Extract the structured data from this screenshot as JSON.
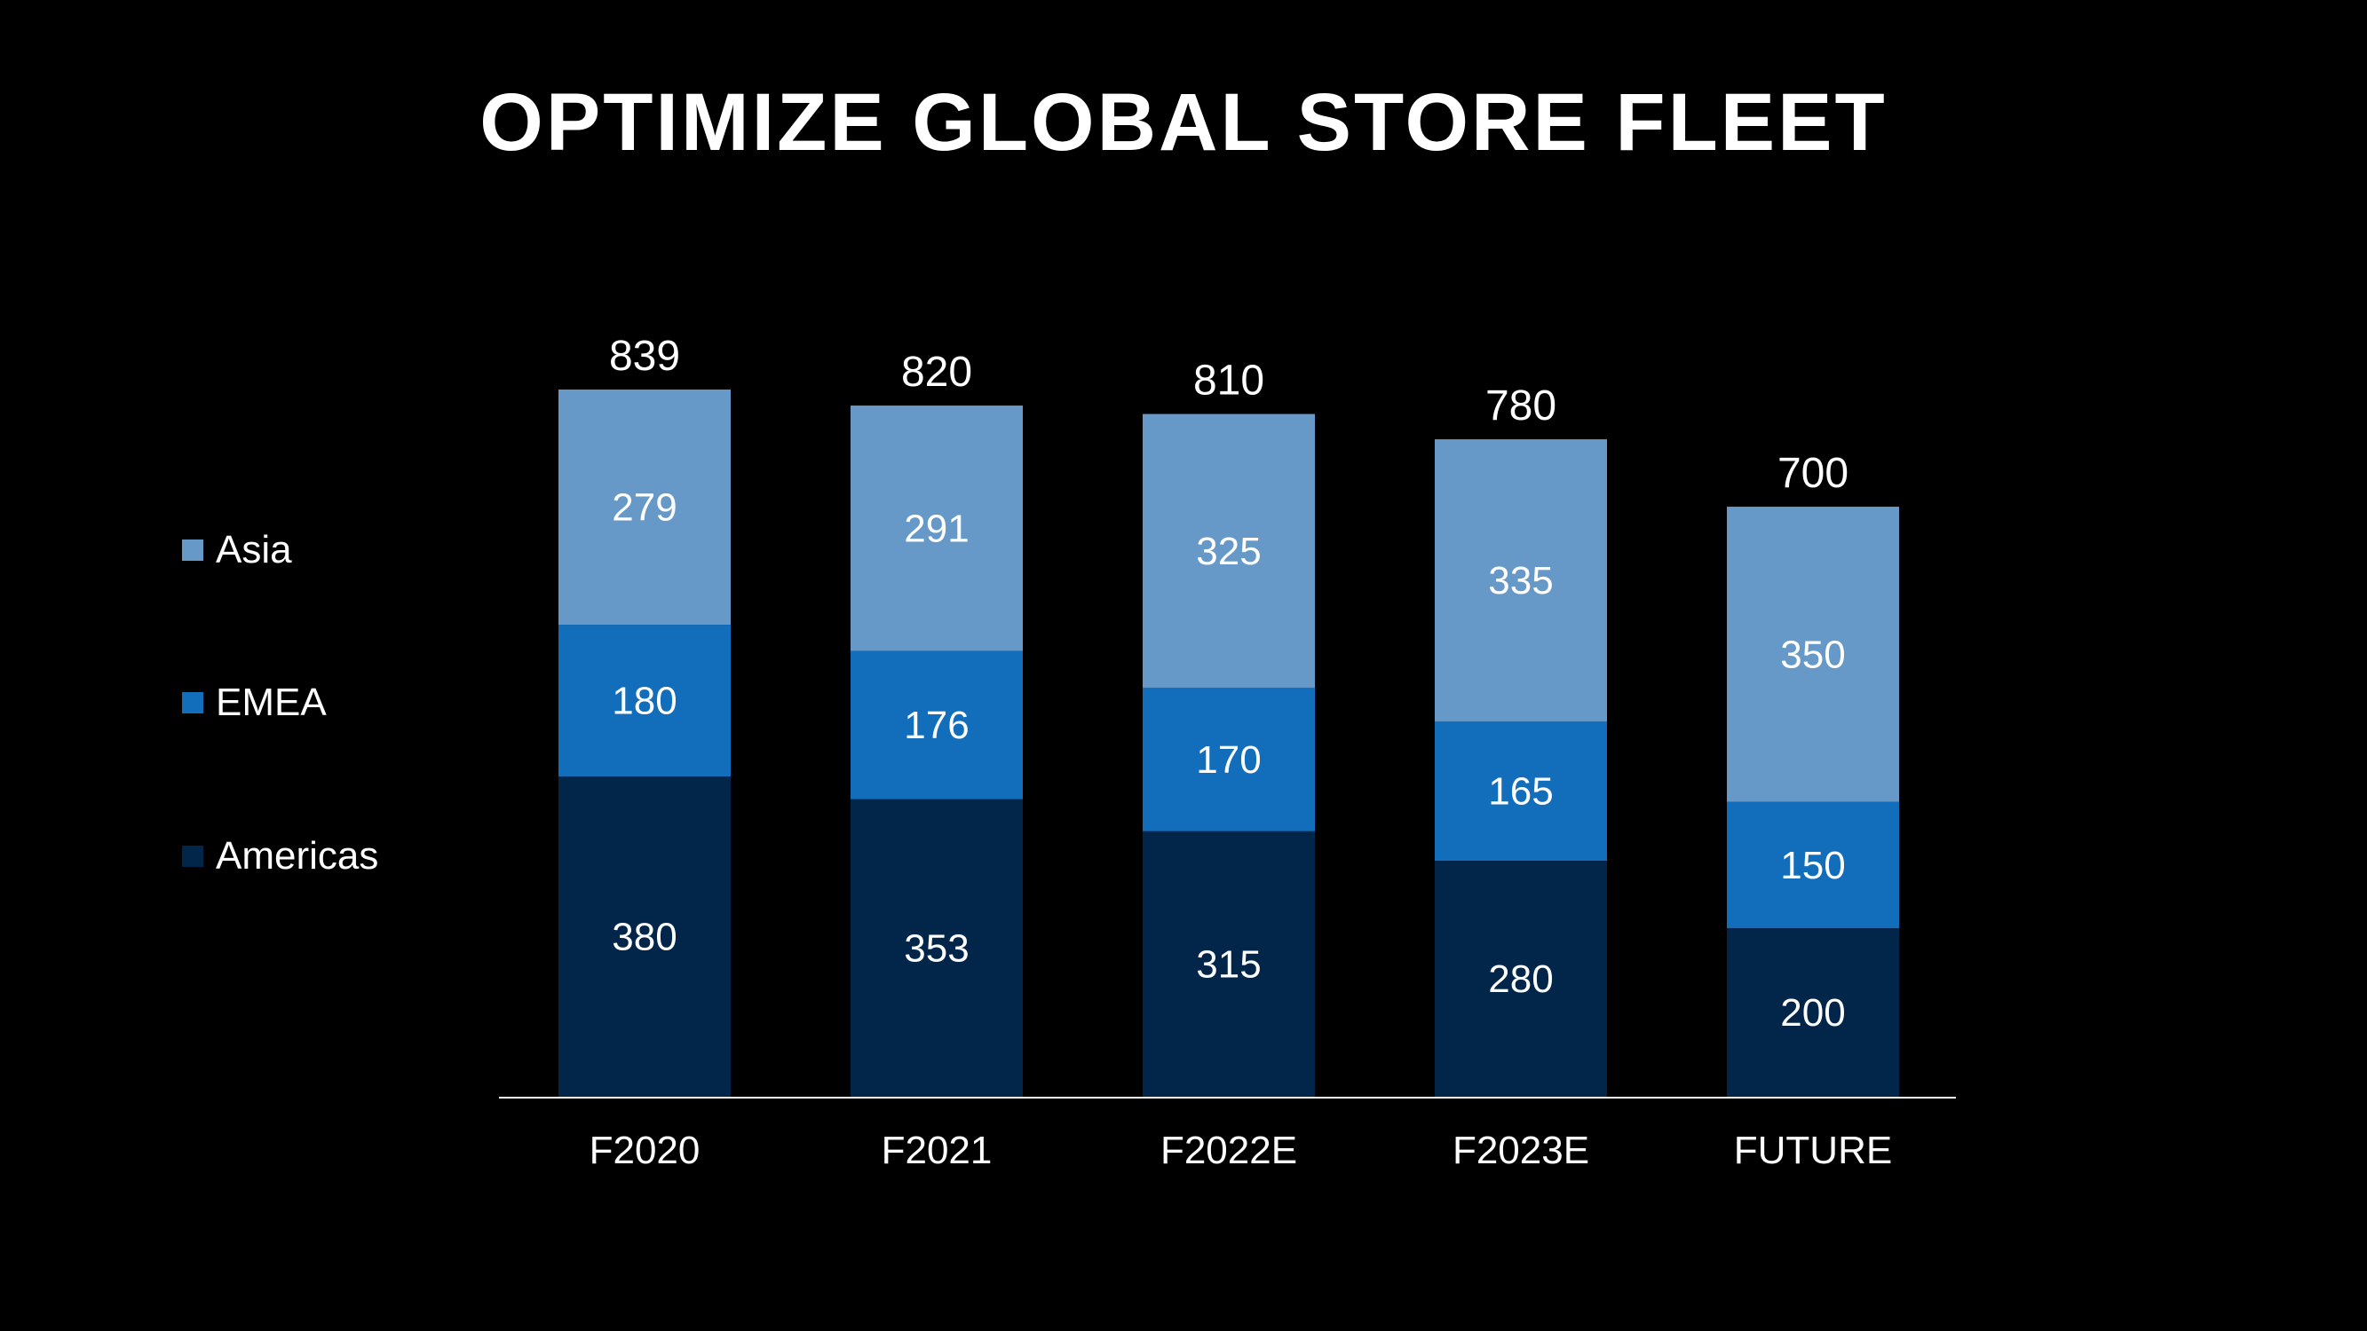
{
  "title": "OPTIMIZE GLOBAL STORE FLEET",
  "colors": {
    "background": "#000000",
    "Asia": "#6699C7",
    "EMEA": "#126DBA",
    "Americas": "#02254A",
    "text": "#FFFFFF",
    "axis": "#FFFFFF"
  },
  "legend": [
    {
      "label": "Asia",
      "color": "#6699C7"
    },
    {
      "label": "EMEA",
      "color": "#126DBA"
    },
    {
      "label": "Americas",
      "color": "#02254A"
    }
  ],
  "chart_data": {
    "type": "bar",
    "stacked": true,
    "title": "OPTIMIZE GLOBAL STORE FLEET",
    "xlabel": "",
    "ylabel": "",
    "categories": [
      "F2020",
      "F2021",
      "F2022E",
      "F2023E",
      "FUTURE"
    ],
    "series": [
      {
        "name": "Americas",
        "color": "#02254A",
        "values": [
          380,
          353,
          315,
          280,
          200
        ]
      },
      {
        "name": "EMEA",
        "color": "#126DBA",
        "values": [
          180,
          176,
          170,
          165,
          150
        ]
      },
      {
        "name": "Asia",
        "color": "#6699C7",
        "values": [
          279,
          291,
          325,
          335,
          350
        ]
      }
    ],
    "totals": [
      839,
      820,
      810,
      780,
      700
    ],
    "ylim": [
      0,
      839
    ],
    "legend_position": "left",
    "grid": false
  }
}
